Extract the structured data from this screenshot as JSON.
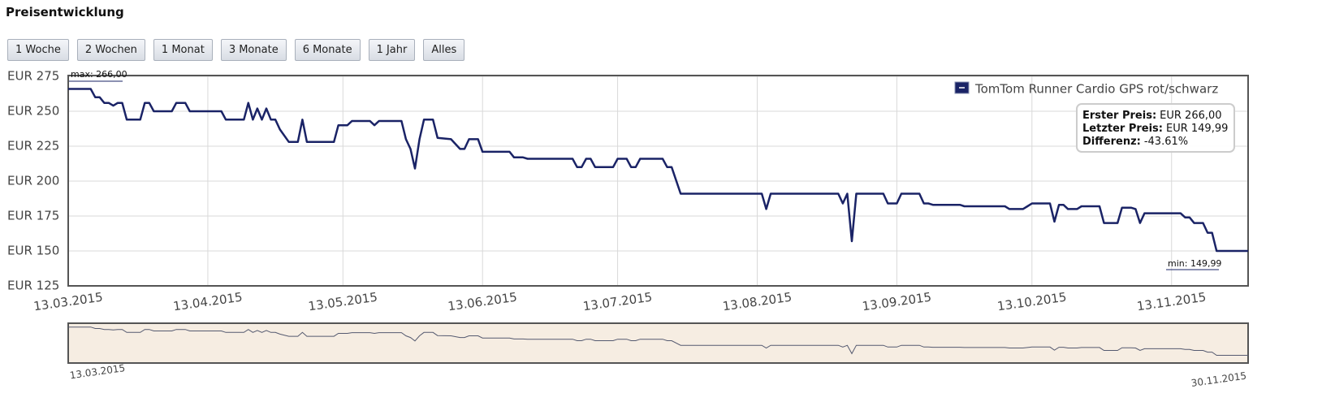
{
  "title": "Preisentwicklung",
  "buttons": [
    "1 Woche",
    "2 Wochen",
    "1 Monat",
    "3 Monate",
    "6 Monate",
    "1 Jahr",
    "Alles"
  ],
  "chart_data": {
    "type": "line",
    "x": [
      "2015-03-13",
      "2015-03-18",
      "2015-03-19",
      "2015-03-20",
      "2015-03-21",
      "2015-03-22",
      "2015-03-23",
      "2015-03-24",
      "2015-03-25",
      "2015-03-26",
      "2015-03-29",
      "2015-03-30",
      "2015-03-31",
      "2015-04-01",
      "2015-04-05",
      "2015-04-06",
      "2015-04-08",
      "2015-04-09",
      "2015-04-16",
      "2015-04-17",
      "2015-04-21",
      "2015-04-22",
      "2015-04-23",
      "2015-04-24",
      "2015-04-25",
      "2015-04-26",
      "2015-04-27",
      "2015-04-28",
      "2015-04-29",
      "2015-05-01",
      "2015-05-03",
      "2015-05-04",
      "2015-05-05",
      "2015-05-11",
      "2015-05-12",
      "2015-05-14",
      "2015-05-15",
      "2015-05-19",
      "2015-05-20",
      "2015-05-21",
      "2015-05-26",
      "2015-05-27",
      "2015-05-28",
      "2015-05-29",
      "2015-05-30",
      "2015-05-31",
      "2015-06-02",
      "2015-06-03",
      "2015-06-06",
      "2015-06-08",
      "2015-06-09",
      "2015-06-10",
      "2015-06-12",
      "2015-06-13",
      "2015-06-19",
      "2015-06-20",
      "2015-06-22",
      "2015-06-23",
      "2015-07-03",
      "2015-07-04",
      "2015-07-05",
      "2015-07-06",
      "2015-07-07",
      "2015-07-08",
      "2015-07-12",
      "2015-07-13",
      "2015-07-15",
      "2015-07-16",
      "2015-07-17",
      "2015-07-18",
      "2015-07-23",
      "2015-07-24",
      "2015-07-25",
      "2015-07-27",
      "2015-08-14",
      "2015-08-15",
      "2015-08-16",
      "2015-08-31",
      "2015-09-01",
      "2015-09-02",
      "2015-09-03",
      "2015-09-04",
      "2015-09-10",
      "2015-09-11",
      "2015-09-13",
      "2015-09-14",
      "2015-09-18",
      "2015-09-19",
      "2015-09-20",
      "2015-09-21",
      "2015-09-27",
      "2015-09-28",
      "2015-10-07",
      "2015-10-08",
      "2015-10-11",
      "2015-10-12",
      "2015-10-13",
      "2015-10-17",
      "2015-10-18",
      "2015-10-19",
      "2015-10-20",
      "2015-10-21",
      "2015-10-23",
      "2015-10-24",
      "2015-10-28",
      "2015-10-29",
      "2015-11-01",
      "2015-11-02",
      "2015-11-04",
      "2015-11-05",
      "2015-11-06",
      "2015-11-07",
      "2015-11-15",
      "2015-11-16",
      "2015-11-17",
      "2015-11-18",
      "2015-11-20",
      "2015-11-21",
      "2015-11-22",
      "2015-11-23",
      "2015-11-30"
    ],
    "series": [
      {
        "name": "TomTom Runner Cardio GPS rot/schwarz",
        "color": "#1a2366",
        "values": [
          266,
          266,
          260,
          260,
          256,
          256,
          254,
          256,
          256,
          244,
          244,
          256,
          256,
          250,
          250,
          256,
          256,
          250,
          250,
          244,
          244,
          256,
          244,
          252,
          244,
          252,
          244,
          244,
          237,
          228,
          228,
          244,
          228,
          228,
          240,
          240,
          243,
          243,
          240,
          243,
          243,
          230,
          223,
          209,
          230,
          244,
          244,
          231,
          230,
          223,
          223,
          230,
          230,
          221,
          221,
          217,
          217,
          216,
          216,
          210,
          210,
          216,
          216,
          210,
          210,
          216,
          216,
          210,
          210,
          216,
          216,
          210,
          210,
          191,
          191,
          180,
          191,
          191,
          184,
          191,
          157,
          191,
          191,
          184,
          184,
          191,
          191,
          184,
          184,
          183,
          183,
          182,
          182,
          180,
          180,
          182,
          184,
          184,
          171,
          183,
          183,
          180,
          180,
          182,
          182,
          170,
          170,
          181,
          181,
          180,
          170,
          177,
          177,
          174,
          174,
          170,
          170,
          163,
          163,
          149.99,
          149.99
        ]
      }
    ],
    "xlim": [
      "2015-03-13",
      "2015-11-30"
    ],
    "xticks": [
      {
        "value": "2015-03-13",
        "label": "13.03.2015"
      },
      {
        "value": "2015-04-13",
        "label": "13.04.2015"
      },
      {
        "value": "2015-05-13",
        "label": "13.05.2015"
      },
      {
        "value": "2015-06-13",
        "label": "13.06.2015"
      },
      {
        "value": "2015-07-13",
        "label": "13.07.2015"
      },
      {
        "value": "2015-08-13",
        "label": "13.08.2015"
      },
      {
        "value": "2015-09-13",
        "label": "13.09.2015"
      },
      {
        "value": "2015-10-13",
        "label": "13.10.2015"
      },
      {
        "value": "2015-11-13",
        "label": "13.11.2015"
      }
    ],
    "ylim": [
      125,
      275
    ],
    "yticks": [
      {
        "value": 125,
        "label": "EUR 125"
      },
      {
        "value": 150,
        "label": "EUR 150"
      },
      {
        "value": 175,
        "label": "EUR 175"
      },
      {
        "value": 200,
        "label": "EUR 200"
      },
      {
        "value": 225,
        "label": "EUR 225"
      },
      {
        "value": 250,
        "label": "EUR 250"
      },
      {
        "value": 275,
        "label": "EUR 275"
      }
    ],
    "grid": true,
    "legend": "top-right",
    "annotations": [
      "max: 266,00",
      "min: 149,99"
    ],
    "info": [
      {
        "label": "Erster Preis:",
        "value": "EUR 266,00"
      },
      {
        "label": "Letzter Preis:",
        "value": "EUR 149,99"
      },
      {
        "label": "Differenz:",
        "value": "-43.61%"
      }
    ],
    "navigator": {
      "labels": [
        "13.03.2015",
        "30.11.2015"
      ]
    }
  }
}
